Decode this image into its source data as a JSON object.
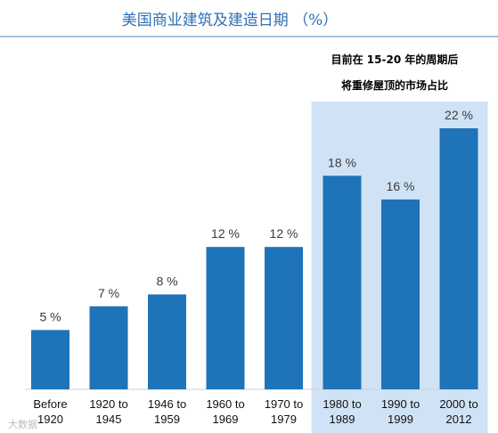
{
  "chart_data": {
    "type": "bar",
    "title": "美国商业建筑及建造日期 （%）",
    "categories": [
      "Before 1920",
      "1920 to 1945",
      "1946 to 1959",
      "1960 to 1969",
      "1970 to 1979",
      "1980 to 1989",
      "1990 to 1999",
      "2000 to 2012"
    ],
    "values": [
      5,
      7,
      8,
      12,
      12,
      18,
      16,
      22
    ],
    "value_labels": [
      "5 %",
      "7 %",
      "8 %",
      "12 %",
      "12 %",
      "18 %",
      "16 %",
      "22 %"
    ],
    "ylim": [
      0,
      22
    ],
    "grid": false,
    "highlight": {
      "categories": [
        "1980 to 1989",
        "1990 to 1999",
        "2000 to 2012"
      ],
      "label_line1": "目前在 15-20 年的周期后",
      "label_line2": "将重修屋顶的市场占比"
    },
    "colors": {
      "bar": "#1f73b8",
      "highlight_band": "#d0e3f6",
      "title_rule": "#4a86c5"
    }
  },
  "watermark": "大数据"
}
